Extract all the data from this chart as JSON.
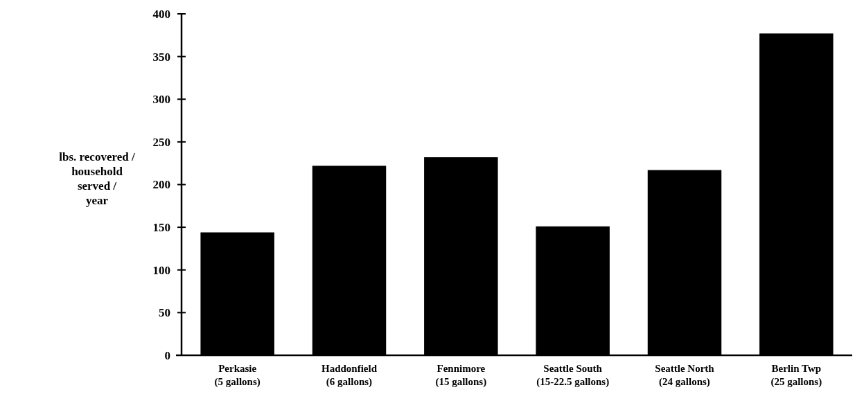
{
  "chart_data": {
    "type": "bar",
    "ylabel": "lbs. recovered /\nhousehold\nserved /\nyear",
    "categories": [
      "Perkasie\n(5 gallons)",
      "Haddonfield\n(6 gallons)",
      "Fennimore\n(15 gallons)",
      "Seattle South\n(15-22.5 gallons)",
      "Seattle North\n(24 gallons)",
      "Berlin Twp\n(25 gallons)"
    ],
    "values": [
      144,
      222,
      232,
      151,
      217,
      377
    ],
    "color": "#000000",
    "ylim": [
      0,
      400
    ],
    "yticks": [
      0,
      50,
      100,
      150,
      200,
      250,
      300,
      350,
      400
    ]
  }
}
